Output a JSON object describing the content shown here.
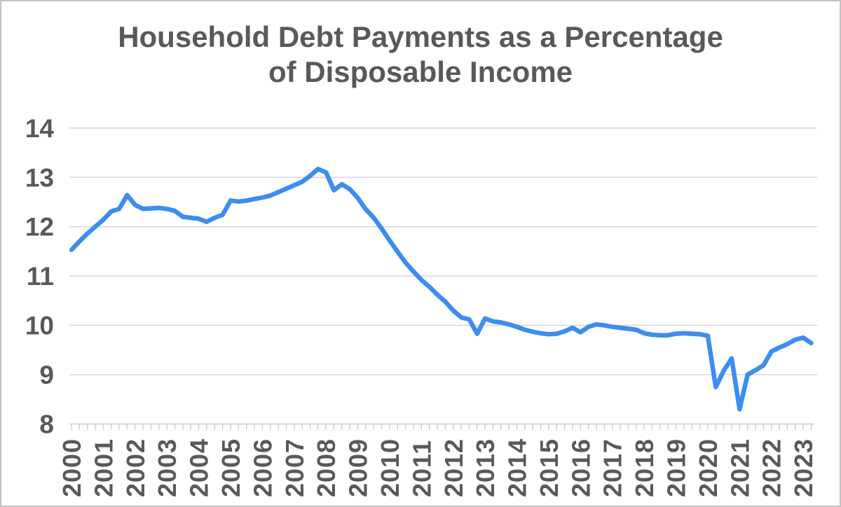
{
  "chart_data": {
    "type": "line",
    "title": "Household Debt Payments as a Percentage of Disposable Income",
    "title_lines": [
      "Household Debt Payments as a Percentage",
      "of Disposable Income"
    ],
    "xlabel": "",
    "ylabel": "",
    "frequency": "quarterly",
    "x_start": "2000 Q1",
    "x_end": "2023 Q2",
    "years": [
      "2000",
      "2001",
      "2002",
      "2003",
      "2004",
      "2005",
      "2006",
      "2007",
      "2008",
      "2009",
      "2010",
      "2011",
      "2012",
      "2013",
      "2014",
      "2015",
      "2016",
      "2017",
      "2018",
      "2019",
      "2020",
      "2021",
      "2022",
      "2023"
    ],
    "yticks": [
      8,
      9,
      10,
      11,
      12,
      13,
      14
    ],
    "ylim": [
      8,
      14
    ],
    "grid": "horizontal",
    "legend": "none",
    "values": [
      11.53,
      11.7,
      11.86,
      12.0,
      12.14,
      12.31,
      12.36,
      12.64,
      12.44,
      12.36,
      12.37,
      12.38,
      12.36,
      12.32,
      12.2,
      12.18,
      12.16,
      12.1,
      12.18,
      12.24,
      12.53,
      12.51,
      12.53,
      12.56,
      12.59,
      12.63,
      12.7,
      12.77,
      12.84,
      12.91,
      13.03,
      13.17,
      13.1,
      12.74,
      12.86,
      12.76,
      12.58,
      12.35,
      12.18,
      11.96,
      11.72,
      11.49,
      11.27,
      11.09,
      10.92,
      10.78,
      10.62,
      10.48,
      10.3,
      10.16,
      10.12,
      9.83,
      10.14,
      10.08,
      10.06,
      10.02,
      9.97,
      9.91,
      9.87,
      9.84,
      9.82,
      9.83,
      9.88,
      9.95,
      9.86,
      9.97,
      10.02,
      10.0,
      9.97,
      9.95,
      9.93,
      9.91,
      9.84,
      9.81,
      9.8,
      9.8,
      9.83,
      9.84,
      9.83,
      9.82,
      9.79,
      8.75,
      9.08,
      9.33,
      8.3,
      9.0,
      9.09,
      9.19,
      9.47,
      9.55,
      9.62,
      9.71,
      9.75,
      9.64
    ],
    "colors": {
      "line": "#3c8df0",
      "text": "#595959",
      "gridline": "#d9d9d9",
      "axis_tick": "#cccccc",
      "background": "#ffffff",
      "border": "#c2c2c2"
    }
  }
}
